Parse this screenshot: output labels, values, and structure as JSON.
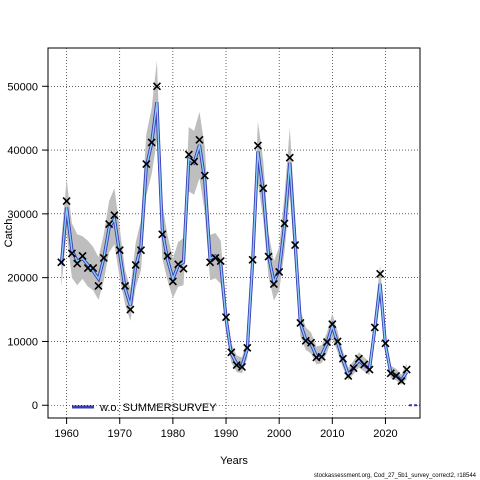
{
  "chart_data": {
    "type": "line",
    "xlabel": "Years",
    "ylabel": "Catch",
    "xlim": [
      1956.5,
      2026.5
    ],
    "ylim": [
      -2000,
      56000
    ],
    "x_ticks": [
      1960,
      1970,
      1980,
      1990,
      2000,
      2010,
      2020
    ],
    "y_ticks": [
      0,
      10000,
      20000,
      30000,
      40000,
      50000
    ],
    "grid": true,
    "legend_position": "bottom-left",
    "series": [
      {
        "name": "w.o. SUMMERSURVEY",
        "color": "#3b3bb3"
      }
    ],
    "observed": {
      "x": [
        1959,
        1960,
        1961,
        1962,
        1963,
        1964,
        1965,
        1966,
        1967,
        1968,
        1969,
        1970,
        1971,
        1972,
        1973,
        1974,
        1975,
        1976,
        1977,
        1978,
        1979,
        1980,
        1981,
        1982,
        1983,
        1984,
        1985,
        1986,
        1987,
        1988,
        1989,
        1990,
        1991,
        1992,
        1993,
        1994,
        1995,
        1996,
        1997,
        1998,
        1999,
        2000,
        2001,
        2002,
        2003,
        2004,
        2005,
        2006,
        2007,
        2008,
        2009,
        2010,
        2011,
        2012,
        2013,
        2014,
        2015,
        2016,
        2017,
        2018,
        2019,
        2020,
        2021,
        2022,
        2023,
        2024
      ],
      "y": [
        22400,
        32000,
        23800,
        22200,
        23400,
        21500,
        21500,
        18700,
        23100,
        28400,
        29800,
        24300,
        18700,
        15000,
        22000,
        24300,
        37800,
        41200,
        50000,
        26800,
        23400,
        19400,
        22100,
        21400,
        39300,
        38200,
        41600,
        36000,
        22400,
        23100,
        22600,
        13800,
        8300,
        6300,
        6000,
        9000,
        22800,
        40700,
        34000,
        23300,
        19000,
        20900,
        28500,
        38800,
        25100,
        12900,
        10100,
        9800,
        7500,
        7600,
        9900,
        12700,
        10000,
        7300,
        4600,
        5800,
        7300,
        6400,
        5600,
        12200,
        20600,
        9700,
        5000,
        4600,
        3800,
        5600
      ]
    },
    "fitted": {
      "x": [
        1959,
        1960,
        1961,
        1962,
        1963,
        1964,
        1965,
        1966,
        1967,
        1968,
        1969,
        1970,
        1971,
        1972,
        1973,
        1974,
        1975,
        1976,
        1977,
        1978,
        1979,
        1980,
        1981,
        1982,
        1983,
        1984,
        1985,
        1986,
        1987,
        1988,
        1989,
        1990,
        1991,
        1992,
        1993,
        1994,
        1995,
        1996,
        1997,
        1998,
        1999,
        2000,
        2001,
        2002,
        2003,
        2004,
        2005,
        2006,
        2007,
        2008,
        2009,
        2010,
        2011,
        2012,
        2013,
        2014,
        2015,
        2016,
        2017,
        2018,
        2019,
        2020,
        2021,
        2022,
        2023,
        2024
      ],
      "y": [
        22000,
        31000,
        24300,
        22600,
        23000,
        22000,
        21000,
        19800,
        23000,
        27800,
        29200,
        23800,
        18300,
        15600,
        21800,
        25000,
        37400,
        41000,
        47500,
        27300,
        22800,
        19800,
        21900,
        22400,
        38600,
        38000,
        40800,
        35200,
        23000,
        23400,
        22200,
        13600,
        8100,
        6500,
        6200,
        8800,
        22400,
        39800,
        33600,
        23500,
        19300,
        21200,
        28100,
        38000,
        25500,
        12800,
        10300,
        9600,
        7700,
        7900,
        9700,
        12400,
        9800,
        7100,
        4800,
        5900,
        7000,
        6300,
        5700,
        12000,
        19000,
        9400,
        5100,
        4700,
        3900,
        5200
      ]
    },
    "ci_lower": [
      18500,
      27000,
      20000,
      18800,
      19800,
      18600,
      18000,
      16500,
      19600,
      24000,
      25200,
      20000,
      15800,
      13200,
      18500,
      21200,
      32800,
      36200,
      41500,
      23000,
      19500,
      16800,
      18600,
      18800,
      33500,
      33000,
      35600,
      30200,
      19600,
      19900,
      19000,
      11500,
      6700,
      5200,
      5000,
      7400,
      19000,
      35000,
      29200,
      20200,
      16400,
      18000,
      24000,
      33000,
      21600,
      10800,
      8700,
      8100,
      6400,
      6600,
      8200,
      10600,
      8300,
      5900,
      3900,
      4900,
      5900,
      5300,
      4700,
      10300,
      16500,
      7900,
      4200,
      3900,
      3200,
      4100
    ],
    "ci_upper": [
      25800,
      35500,
      28500,
      26800,
      26500,
      25800,
      24800,
      23200,
      26800,
      32000,
      34000,
      27800,
      21200,
      18300,
      25500,
      29000,
      42500,
      46500,
      54000,
      31500,
      26600,
      23000,
      25600,
      26200,
      43600,
      43000,
      46000,
      40500,
      26700,
      27000,
      25800,
      16000,
      9700,
      7800,
      7500,
      10400,
      26000,
      44500,
      38400,
      27000,
      22600,
      24800,
      33000,
      43500,
      29800,
      15000,
      12200,
      11400,
      9200,
      9400,
      11400,
      14400,
      11500,
      8500,
      5900,
      7000,
      8300,
      7500,
      6800,
      14200,
      22000,
      11100,
      6200,
      5700,
      4800,
      6600
    ]
  },
  "footer": {
    "source": "stockassessment.org, Cod_27_5b1_survey_correct2, r18544"
  }
}
